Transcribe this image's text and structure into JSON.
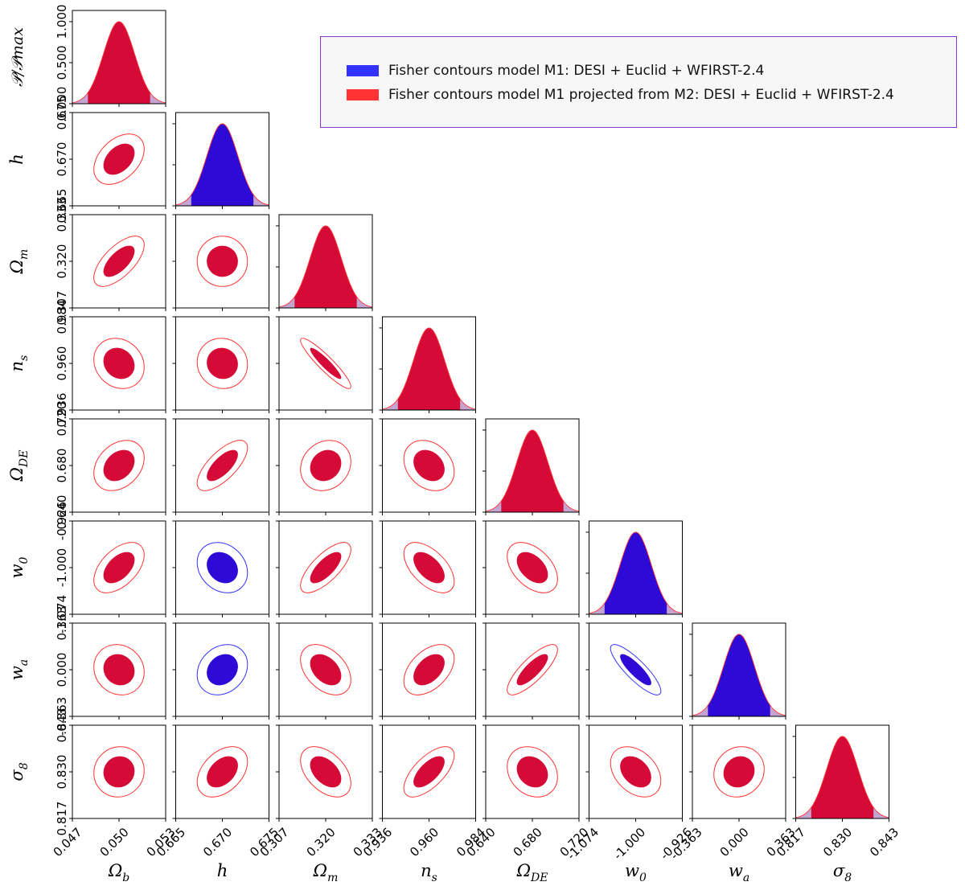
{
  "colors": {
    "model_m1": "#3333ff",
    "model_m1_projected": "#ff3333",
    "fill_overlap_red": "#d60a36",
    "fill_overlap_blue": "#2e0ad6",
    "tail_fill": "#b085c2",
    "legend_border": "#8a35d0"
  },
  "legend": {
    "entries": [
      {
        "label": "Fisher contours model M1: DESI + Euclid + WFIRST-2.4",
        "color": "#3333ff"
      },
      {
        "label": "Fisher contours model M1 projected from M2: DESI + Euclid + WFIRST-2.4",
        "color": "#ff3333"
      }
    ]
  },
  "chart_data": {
    "type": "corner",
    "diag_ylabel": "𝒫/𝒫max",
    "diag_ticks": [
      "0.000",
      "0.500",
      "1.000"
    ],
    "diag_tick_values": [
      0,
      0.5,
      1.0
    ],
    "params": [
      {
        "name": "omega_b",
        "label": "Ωb",
        "mean": 0.05,
        "sigma": 0.0009,
        "ticks": [
          "0.047",
          "0.050",
          "0.053"
        ],
        "tick_values": [
          0.047,
          0.05,
          0.053
        ],
        "range": [
          0.047,
          0.053
        ]
      },
      {
        "name": "h",
        "label": "h",
        "mean": 0.67,
        "sigma": 0.0015,
        "ticks": [
          "0.665",
          "0.670",
          "0.675"
        ],
        "tick_values": [
          0.665,
          0.67,
          0.675
        ],
        "range": [
          0.665,
          0.675
        ]
      },
      {
        "name": "omega_m",
        "label": "Ωm",
        "mean": 0.32,
        "sigma": 0.004,
        "ticks": [
          "0.307",
          "0.320",
          "0.333"
        ],
        "tick_values": [
          0.307,
          0.32,
          0.333
        ],
        "range": [
          0.307,
          0.333
        ]
      },
      {
        "name": "n_s",
        "label": "ns",
        "mean": 0.96,
        "sigma": 0.0073,
        "ticks": [
          "0.936",
          "0.960",
          "0.984"
        ],
        "tick_values": [
          0.936,
          0.96,
          0.984
        ],
        "range": [
          0.936,
          0.984
        ]
      },
      {
        "name": "omega_de",
        "label": "ΩDE",
        "mean": 0.68,
        "sigma": 0.012,
        "ticks": [
          "0.640",
          "0.680",
          "0.720"
        ],
        "tick_values": [
          0.64,
          0.68,
          0.72
        ],
        "range": [
          0.64,
          0.72
        ]
      },
      {
        "name": "w0",
        "label": "w0",
        "mean": -1.0,
        "sigma": 0.023,
        "ticks": [
          "-1.074",
          "-1.000",
          "-0.926"
        ],
        "tick_values": [
          -1.074,
          -1.0,
          -0.926
        ],
        "range": [
          -1.074,
          -0.926
        ]
      },
      {
        "name": "wa",
        "label": "wa",
        "mean": 0.0,
        "sigma": 0.111,
        "ticks": [
          "-0.363",
          "0.000",
          "0.363"
        ],
        "tick_values": [
          -0.363,
          0.0,
          0.363
        ],
        "range": [
          -0.363,
          0.363
        ]
      },
      {
        "name": "sigma8",
        "label": "σ8",
        "mean": 0.83,
        "sigma": 0.004,
        "ticks": [
          "0.817",
          "0.830",
          "0.843"
        ],
        "tick_values": [
          0.817,
          0.83,
          0.843
        ],
        "range": [
          0.817,
          0.843
        ]
      }
    ],
    "correlations": [
      {
        "i": 1,
        "j": 0,
        "rho": 0.4
      },
      {
        "i": 2,
        "j": 0,
        "rho": 0.65
      },
      {
        "i": 2,
        "j": 1,
        "rho": 0.0
      },
      {
        "i": 3,
        "j": 0,
        "rho": -0.15
      },
      {
        "i": 3,
        "j": 1,
        "rho": -0.05
      },
      {
        "i": 3,
        "j": 2,
        "rho": -0.92
      },
      {
        "i": 4,
        "j": 0,
        "rho": 0.3
      },
      {
        "i": 4,
        "j": 1,
        "rho": 0.7
      },
      {
        "i": 4,
        "j": 2,
        "rho": 0.15
      },
      {
        "i": 4,
        "j": 3,
        "rho": -0.25
      },
      {
        "i": 5,
        "j": 0,
        "rho": 0.5
      },
      {
        "i": 5,
        "j": 1,
        "rho": -0.2
      },
      {
        "i": 5,
        "j": 2,
        "rho": 0.72
      },
      {
        "i": 5,
        "j": 3,
        "rho": -0.55
      },
      {
        "i": 5,
        "j": 4,
        "rho": -0.45
      },
      {
        "i": 6,
        "j": 0,
        "rho": -0.1
      },
      {
        "i": 6,
        "j": 1,
        "rho": 0.2
      },
      {
        "i": 6,
        "j": 2,
        "rho": -0.4
      },
      {
        "i": 6,
        "j": 3,
        "rho": 0.45
      },
      {
        "i": 6,
        "j": 4,
        "rho": 0.8
      },
      {
        "i": 6,
        "j": 5,
        "rho": -0.85
      },
      {
        "i": 7,
        "j": 0,
        "rho": 0.05
      },
      {
        "i": 7,
        "j": 1,
        "rho": 0.4
      },
      {
        "i": 7,
        "j": 2,
        "rho": -0.45
      },
      {
        "i": 7,
        "j": 3,
        "rho": 0.65
      },
      {
        "i": 7,
        "j": 4,
        "rho": -0.2
      },
      {
        "i": 7,
        "j": 5,
        "rho": -0.35
      },
      {
        "i": 7,
        "j": 6,
        "rho": 0.1
      }
    ],
    "blue_params": [
      "h",
      "w0",
      "wa"
    ],
    "contour_levels": [
      "1-sigma filled",
      "2-sigma line"
    ]
  }
}
